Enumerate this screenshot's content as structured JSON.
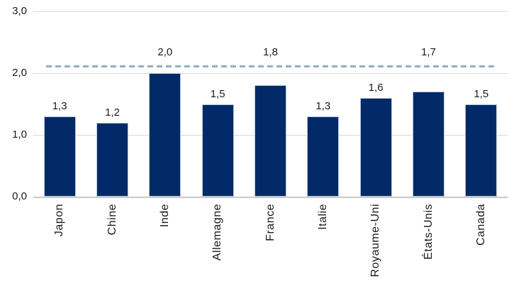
{
  "chart_data": {
    "type": "bar",
    "title": "",
    "xlabel": "",
    "ylabel": "",
    "categories": [
      "Japon",
      "Chine",
      "Inde",
      "Allemagne",
      "France",
      "Italie",
      "Royaume-Uni",
      "États-Unis",
      "Canada"
    ],
    "values": [
      1.3,
      1.2,
      2.0,
      1.5,
      1.8,
      1.3,
      1.6,
      1.7,
      1.5
    ],
    "value_labels": [
      "1,3",
      "1,2",
      "2,0",
      "1,5",
      "1,8",
      "1,3",
      "1,6",
      "1,7",
      "1,5"
    ],
    "label_raised_above_refline": [
      false,
      false,
      true,
      false,
      true,
      false,
      false,
      true,
      false
    ],
    "y_ticks": [
      {
        "value": 3,
        "label": "3,0"
      },
      {
        "value": 2,
        "label": "2,0"
      },
      {
        "value": 1,
        "label": "1,0"
      },
      {
        "value": 0,
        "label": "0,0"
      }
    ],
    "ylim": [
      0,
      3
    ],
    "grid": true,
    "legend": "none",
    "reference_line": {
      "value": 2.1,
      "style": "dashed"
    },
    "colors": {
      "bar_fill": "#032a68",
      "bar_border": "#b7c9da",
      "reference_line": "#8fb1c5",
      "gridline": "#d9d9d9",
      "axis_line": "#c9c9c9",
      "text": "#1a1a1a"
    }
  }
}
